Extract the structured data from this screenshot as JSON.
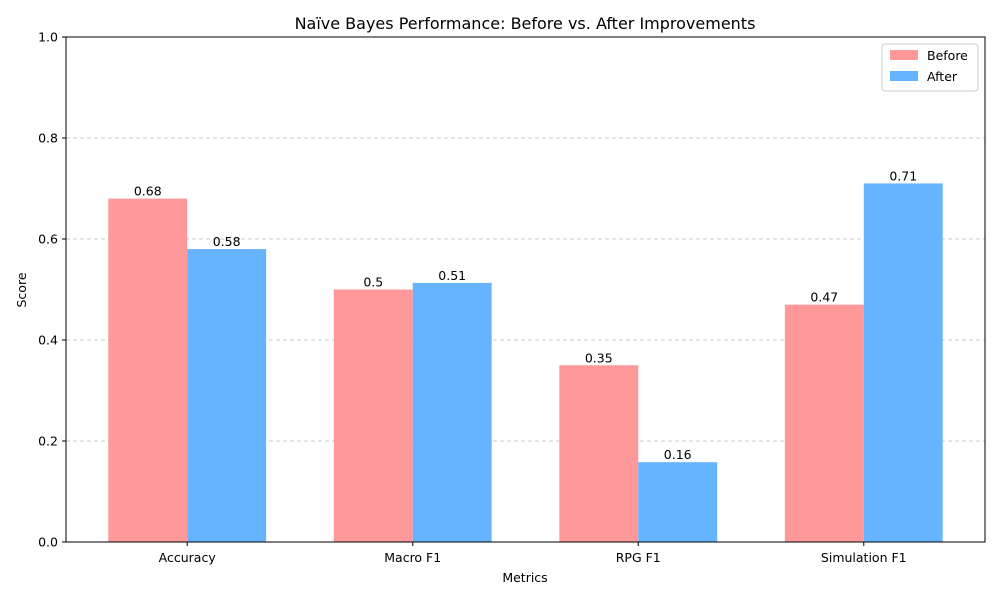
{
  "chart_data": {
    "type": "bar",
    "title": "Naïve Bayes Performance: Before vs. After Improvements",
    "xlabel": "Metrics",
    "ylabel": "Score",
    "ylim": [
      0,
      1.0
    ],
    "yticks": [
      0.0,
      0.2,
      0.4,
      0.6,
      0.8,
      1.0
    ],
    "ytick_labels": [
      "0.0",
      "0.2",
      "0.4",
      "0.6",
      "0.8",
      "1.0"
    ],
    "grid": "y-dashed",
    "legend_position": "top-right",
    "categories": [
      "Accuracy",
      "Macro F1",
      "RPG F1",
      "Simulation F1"
    ],
    "series": [
      {
        "name": "Before",
        "color": "#ff9999",
        "values": [
          0.68,
          0.5,
          0.35,
          0.47
        ],
        "labels": [
          "0.68",
          "0.5",
          "0.35",
          "0.47"
        ]
      },
      {
        "name": "After",
        "color": "#66b3ff",
        "values": [
          0.58,
          0.513,
          0.158,
          0.71
        ],
        "labels": [
          "0.58",
          "0.51",
          "0.16",
          "0.71"
        ]
      }
    ]
  }
}
